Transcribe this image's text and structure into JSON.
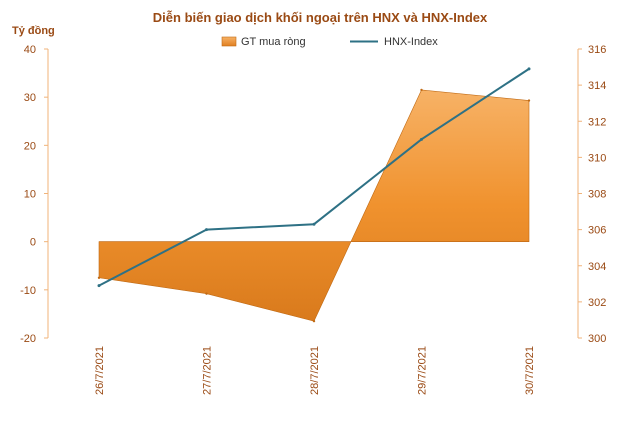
{
  "chart_data": {
    "type": "area+line",
    "title": "Diễn biến giao dịch khối ngoại trên HNX và HNX-Index",
    "y_left_unit": "Tỷ đồng",
    "categories": [
      "26/7/2021",
      "27/7/2021",
      "28/7/2021",
      "29/7/2021",
      "30/7/2021"
    ],
    "y_left": {
      "min": -20,
      "max": 40,
      "ticks": [
        -20,
        -10,
        0,
        10,
        20,
        30,
        40
      ]
    },
    "y_right": {
      "min": 300,
      "max": 316,
      "ticks": [
        300,
        302,
        304,
        306,
        308,
        310,
        312,
        314,
        316
      ]
    },
    "grid": false,
    "legend_position": "top",
    "series": [
      {
        "name": "GT mua ròng",
        "type": "area",
        "axis": "left",
        "color": "#f0922e",
        "values": [
          -7.5,
          -10.8,
          -16.5,
          31.5,
          29.3
        ]
      },
      {
        "name": "HNX-Index",
        "type": "line",
        "axis": "right",
        "color": "#2e7185",
        "values": [
          302.9,
          306.0,
          306.3,
          311.0,
          314.9
        ]
      }
    ]
  }
}
